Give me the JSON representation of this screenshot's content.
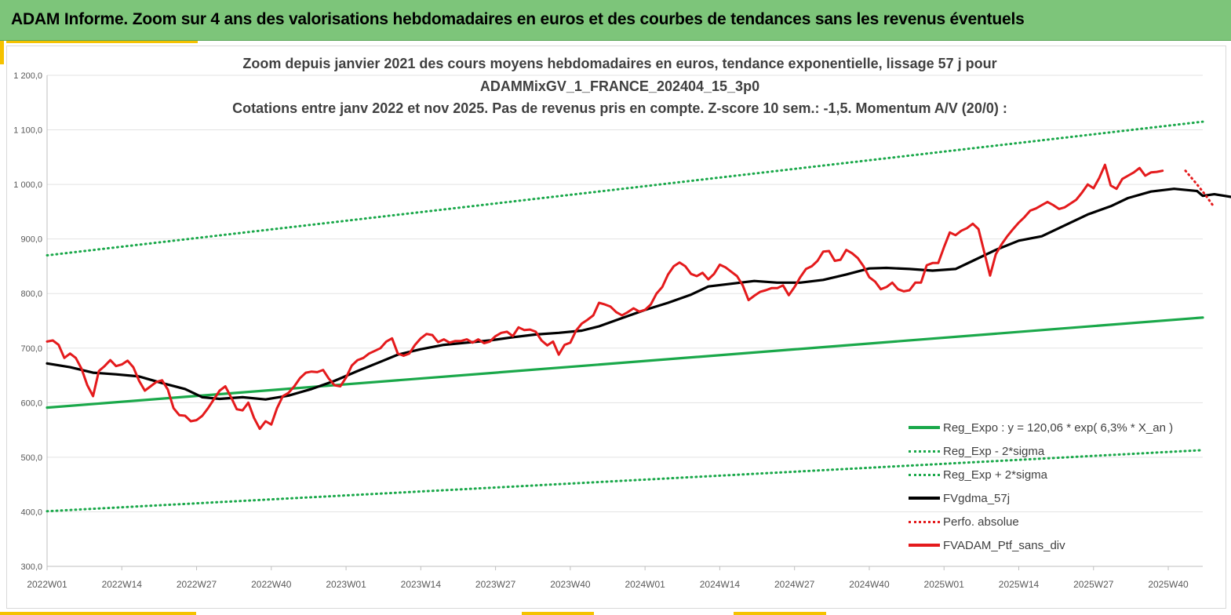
{
  "header": {
    "title": "ADAM Informe. Zoom sur 4 ans des valorisations hebdomadaires en euros et des courbes de tendances sans les revenus éventuels"
  },
  "colors": {
    "header_bg": "#7dc57a",
    "accent": "#f5c200",
    "trend": "#1aa84a",
    "black": "#000000",
    "red": "#e41a1c"
  },
  "chart_data": {
    "type": "line",
    "title_lines": [
      "Zoom depuis janvier 2021 des cours moyens hebdomadaires  en euros, tendance exponentielle, lissage 57 j pour",
      "ADAMMixGV_1_FRANCE_202404_15_3p0",
      "Cotations entre janv 2022 et nov 2025. Pas de revenus pris en compte. Z-score 10 sem.: -1,5. Momentum A/V (20/0) :"
    ],
    "ylim": [
      300,
      1200
    ],
    "y_ticks": [
      "300,0",
      "400,0",
      "500,0",
      "600,0",
      "700,0",
      "800,0",
      "900,0",
      "1 000,0",
      "1 100,0",
      "1 200,0"
    ],
    "y_tick_values": [
      300,
      400,
      500,
      600,
      700,
      800,
      900,
      1000,
      1100,
      1200
    ],
    "x_range": [
      0,
      201
    ],
    "x_ticks": [
      "2022W01",
      "2022W14",
      "2022W27",
      "2022W40",
      "2023W01",
      "2023W14",
      "2023W27",
      "2023W40",
      "2024W01",
      "2024W14",
      "2024W27",
      "2024W40",
      "2025W01",
      "2025W14",
      "2025W27",
      "2025W40"
    ],
    "x_tick_weeks": [
      0,
      13,
      26,
      39,
      52,
      65,
      78,
      91,
      104,
      117,
      130,
      143,
      156,
      169,
      182,
      195
    ],
    "grid": "horizontal",
    "legend_position": "bottom-right",
    "series": [
      {
        "name": "Reg_Expo : y = 120,06 *  exp( 6,3% *  X_an )",
        "style": "solid-green",
        "points": [
          [
            0,
            591
          ],
          [
            201,
            756
          ]
        ]
      },
      {
        "name": "Reg_Exp - 2*sigma",
        "style": "dotted-green",
        "points": [
          [
            0,
            401
          ],
          [
            201,
            513
          ]
        ]
      },
      {
        "name": "Reg_Exp + 2*sigma",
        "style": "dotted-green",
        "points": [
          [
            0,
            870
          ],
          [
            201,
            1115
          ]
        ]
      },
      {
        "name": "FVgdma_57j",
        "style": "solid-black",
        "points": [
          [
            0,
            672
          ],
          [
            4,
            665
          ],
          [
            8,
            655
          ],
          [
            12,
            652
          ],
          [
            16,
            648
          ],
          [
            20,
            636
          ],
          [
            24,
            625
          ],
          [
            27,
            610
          ],
          [
            30,
            607
          ],
          [
            34,
            610
          ],
          [
            38,
            606
          ],
          [
            42,
            613
          ],
          [
            46,
            625
          ],
          [
            50,
            640
          ],
          [
            54,
            658
          ],
          [
            58,
            675
          ],
          [
            61,
            688
          ],
          [
            65,
            698
          ],
          [
            69,
            706
          ],
          [
            73,
            710
          ],
          [
            77,
            714
          ],
          [
            81,
            720
          ],
          [
            85,
            725
          ],
          [
            89,
            728
          ],
          [
            93,
            732
          ],
          [
            96,
            740
          ],
          [
            100,
            755
          ],
          [
            104,
            770
          ],
          [
            108,
            783
          ],
          [
            112,
            798
          ],
          [
            115,
            813
          ],
          [
            119,
            818
          ],
          [
            123,
            823
          ],
          [
            127,
            820
          ],
          [
            131,
            820
          ],
          [
            135,
            825
          ],
          [
            139,
            835
          ],
          [
            143,
            846
          ],
          [
            146,
            847
          ],
          [
            150,
            845
          ],
          [
            154,
            842
          ],
          [
            158,
            845
          ],
          [
            161,
            860
          ],
          [
            165,
            880
          ],
          [
            169,
            897
          ],
          [
            173,
            905
          ],
          [
            177,
            925
          ],
          [
            181,
            945
          ],
          [
            185,
            960
          ],
          [
            188,
            975
          ],
          [
            192,
            987
          ],
          [
            196,
            992
          ],
          [
            200,
            988
          ],
          [
            203,
            982
          ],
          [
            206,
            977
          ],
          [
            201,
            979
          ]
        ]
      },
      {
        "name": "Perfo. absolue",
        "style": "dotted-red",
        "points": [
          [
            198,
            1025
          ],
          [
            200,
            1000
          ],
          [
            201.5,
            980
          ],
          [
            203,
            958
          ]
        ]
      },
      {
        "name": "FVADAM_Ptf_sans_div",
        "style": "solid-red",
        "points": [
          [
            0,
            712
          ],
          [
            1,
            714
          ],
          [
            2,
            706
          ],
          [
            3,
            682
          ],
          [
            4,
            690
          ],
          [
            5,
            682
          ],
          [
            6,
            662
          ],
          [
            7,
            632
          ],
          [
            8,
            612
          ],
          [
            9,
            658
          ],
          [
            10,
            667
          ],
          [
            11,
            678
          ],
          [
            12,
            667
          ],
          [
            13,
            670
          ],
          [
            14,
            677
          ],
          [
            15,
            665
          ],
          [
            16,
            640
          ],
          [
            17,
            622
          ],
          [
            18,
            630
          ],
          [
            19,
            638
          ],
          [
            20,
            641
          ],
          [
            21,
            624
          ],
          [
            22,
            590
          ],
          [
            23,
            577
          ],
          [
            24,
            576
          ],
          [
            25,
            566
          ],
          [
            26,
            568
          ],
          [
            27,
            576
          ],
          [
            28,
            590
          ],
          [
            29,
            606
          ],
          [
            30,
            622
          ],
          [
            31,
            630
          ],
          [
            32,
            610
          ],
          [
            33,
            588
          ],
          [
            34,
            586
          ],
          [
            35,
            600
          ],
          [
            36,
            572
          ],
          [
            37,
            552
          ],
          [
            38,
            566
          ],
          [
            39,
            560
          ],
          [
            40,
            590
          ],
          [
            41,
            612
          ],
          [
            42,
            618
          ],
          [
            43,
            630
          ],
          [
            44,
            645
          ],
          [
            45,
            655
          ],
          [
            46,
            657
          ],
          [
            47,
            656
          ],
          [
            48,
            660
          ],
          [
            49,
            644
          ],
          [
            50,
            632
          ],
          [
            51,
            630
          ],
          [
            52,
            646
          ],
          [
            53,
            668
          ],
          [
            54,
            678
          ],
          [
            55,
            682
          ],
          [
            56,
            690
          ],
          [
            57,
            695
          ],
          [
            58,
            700
          ],
          [
            59,
            712
          ],
          [
            60,
            718
          ],
          [
            61,
            690
          ],
          [
            62,
            686
          ],
          [
            63,
            690
          ],
          [
            64,
            706
          ],
          [
            65,
            718
          ],
          [
            66,
            726
          ],
          [
            67,
            724
          ],
          [
            68,
            711
          ],
          [
            69,
            716
          ],
          [
            70,
            710
          ],
          [
            71,
            713
          ],
          [
            72,
            713
          ],
          [
            73,
            716
          ],
          [
            74,
            710
          ],
          [
            75,
            716
          ],
          [
            76,
            709
          ],
          [
            77,
            712
          ],
          [
            78,
            722
          ],
          [
            79,
            728
          ],
          [
            80,
            730
          ],
          [
            81,
            722
          ],
          [
            82,
            738
          ],
          [
            83,
            733
          ],
          [
            84,
            734
          ],
          [
            85,
            730
          ],
          [
            86,
            714
          ],
          [
            87,
            705
          ],
          [
            88,
            712
          ],
          [
            89,
            688
          ],
          [
            90,
            706
          ],
          [
            91,
            710
          ],
          [
            92,
            732
          ],
          [
            93,
            745
          ],
          [
            94,
            752
          ],
          [
            95,
            760
          ],
          [
            96,
            783
          ],
          [
            97,
            780
          ],
          [
            98,
            776
          ],
          [
            99,
            766
          ],
          [
            100,
            760
          ],
          [
            101,
            766
          ],
          [
            102,
            773
          ],
          [
            103,
            767
          ],
          [
            104,
            770
          ],
          [
            105,
            780
          ],
          [
            106,
            800
          ],
          [
            107,
            812
          ],
          [
            108,
            835
          ],
          [
            109,
            850
          ],
          [
            110,
            857
          ],
          [
            111,
            850
          ],
          [
            112,
            836
          ],
          [
            113,
            832
          ],
          [
            114,
            838
          ],
          [
            115,
            826
          ],
          [
            116,
            836
          ],
          [
            117,
            853
          ],
          [
            118,
            848
          ],
          [
            119,
            840
          ],
          [
            120,
            832
          ],
          [
            121,
            815
          ],
          [
            122,
            788
          ],
          [
            123,
            796
          ],
          [
            124,
            803
          ],
          [
            125,
            806
          ],
          [
            126,
            810
          ],
          [
            127,
            810
          ],
          [
            128,
            815
          ],
          [
            129,
            797
          ],
          [
            130,
            812
          ],
          [
            131,
            830
          ],
          [
            132,
            845
          ],
          [
            133,
            850
          ],
          [
            134,
            860
          ],
          [
            135,
            877
          ],
          [
            136,
            878
          ],
          [
            137,
            860
          ],
          [
            138,
            862
          ],
          [
            139,
            880
          ],
          [
            140,
            874
          ],
          [
            141,
            865
          ],
          [
            142,
            850
          ],
          [
            143,
            830
          ],
          [
            144,
            822
          ],
          [
            145,
            808
          ],
          [
            146,
            812
          ],
          [
            147,
            820
          ],
          [
            148,
            808
          ],
          [
            149,
            804
          ],
          [
            150,
            806
          ],
          [
            151,
            820
          ],
          [
            152,
            820
          ],
          [
            153,
            852
          ],
          [
            154,
            856
          ],
          [
            155,
            856
          ],
          [
            156,
            885
          ],
          [
            157,
            912
          ],
          [
            158,
            907
          ],
          [
            159,
            915
          ],
          [
            160,
            920
          ],
          [
            161,
            928
          ],
          [
            162,
            918
          ],
          [
            163,
            876
          ],
          [
            164,
            833
          ],
          [
            165,
            872
          ],
          [
            166,
            890
          ],
          [
            167,
            905
          ],
          [
            168,
            918
          ],
          [
            169,
            930
          ],
          [
            170,
            940
          ],
          [
            171,
            952
          ],
          [
            172,
            956
          ],
          [
            173,
            962
          ],
          [
            174,
            968
          ],
          [
            175,
            962
          ],
          [
            176,
            955
          ],
          [
            177,
            958
          ],
          [
            178,
            965
          ],
          [
            179,
            972
          ],
          [
            180,
            985
          ],
          [
            181,
            1000
          ],
          [
            182,
            993
          ],
          [
            183,
            1012
          ],
          [
            184,
            1036
          ],
          [
            185,
            998
          ],
          [
            186,
            992
          ],
          [
            187,
            1010
          ],
          [
            188,
            1016
          ],
          [
            189,
            1022
          ],
          [
            190,
            1030
          ],
          [
            191,
            1016
          ],
          [
            192,
            1022
          ],
          [
            193,
            1023
          ],
          [
            194,
            1025
          ]
        ]
      }
    ]
  }
}
